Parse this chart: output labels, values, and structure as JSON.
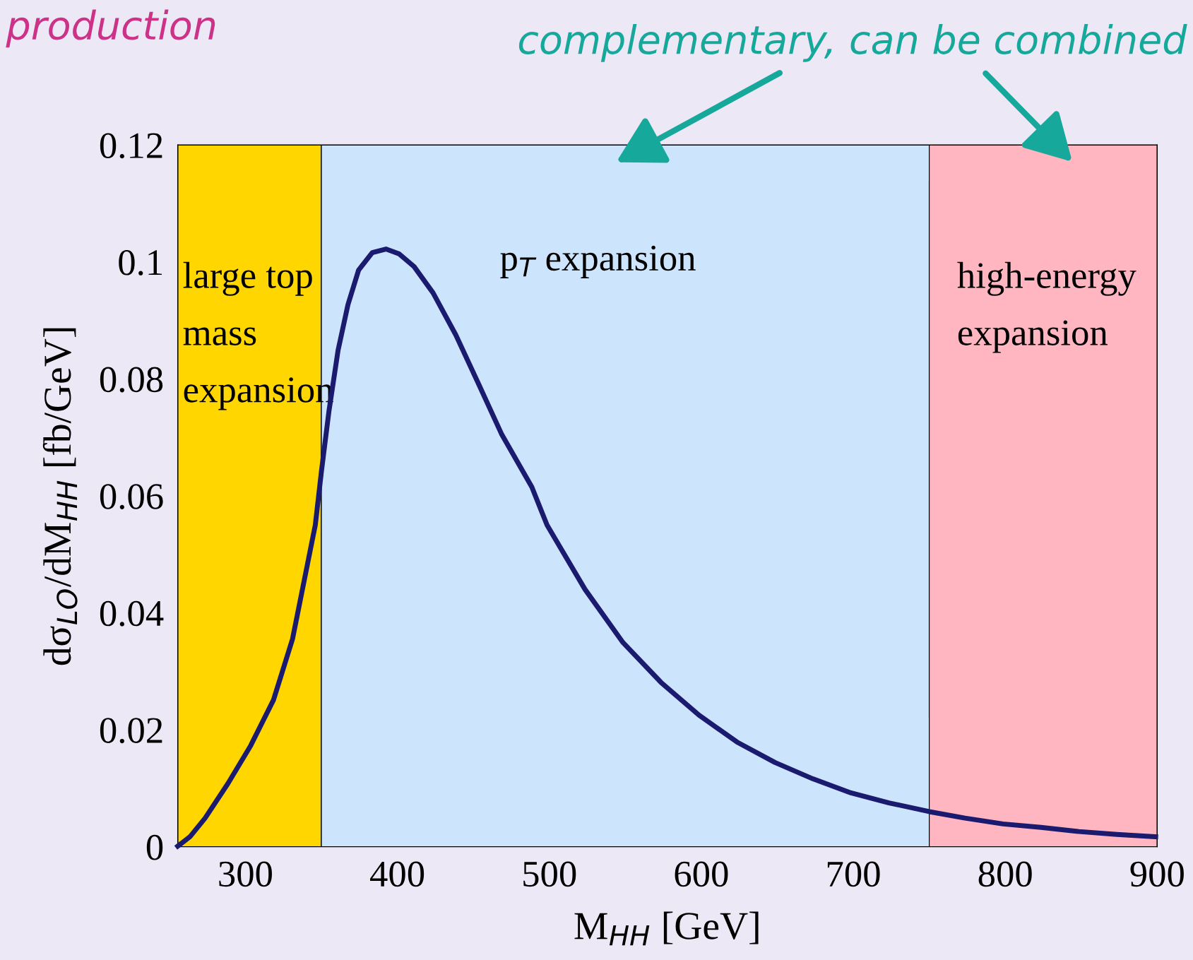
{
  "chart_data": {
    "type": "line",
    "xlabel": "M$_{HH}$ [GeV]",
    "ylabel": "dσ$_{LO}$/dM$_{HH}$ [fb/GeV]",
    "annotations": [
      "production",
      "complementary, can be combined"
    ],
    "x": [
      255.5,
      263.5,
      273.5,
      288.5,
      303.5,
      318.5,
      331,
      341,
      346,
      350,
      355,
      361,
      367.5,
      374.5,
      383.5,
      392.5,
      401,
      411,
      423.5,
      438.5,
      453.5,
      468.5,
      488.5,
      498.5,
      523.5,
      548.5,
      573.5,
      598.5,
      623.5,
      648.5,
      673.5,
      698.5,
      723.5,
      750,
      773.5,
      798.5,
      823.5,
      848.5,
      873.5,
      899
    ],
    "series": [
      {
        "color": "#1a1a6e",
        "values": [
          0.0001,
          0.0017,
          0.0049,
          0.0108,
          0.0173,
          0.0251,
          0.0355,
          0.0485,
          0.055,
          0.0641,
          0.0745,
          0.0849,
          0.0927,
          0.0986,
          0.1016,
          0.1022,
          0.1014,
          0.0992,
          0.0947,
          0.0875,
          0.0791,
          0.0706,
          0.0615,
          0.055,
          0.044,
          0.0349,
          0.0281,
          0.0225,
          0.0179,
          0.0144,
          0.0116,
          0.0092,
          0.0075,
          0.006,
          0.0049,
          0.0039,
          0.0033,
          0.0026,
          0.0021,
          0.0017
        ]
      }
    ],
    "bands": [
      {
        "axis": "x",
        "from": 255.5,
        "to": 350,
        "label": "large top\nmass\nexpansion",
        "color": "#ffd600"
      },
      {
        "axis": "x",
        "from": 350,
        "to": 750,
        "label": "p$_{T}$ expansion",
        "color": "#cce5fc"
      },
      {
        "axis": "x",
        "from": 750,
        "to": 900,
        "label": "high-energy\nexpansion",
        "color": "#ffb6c1"
      }
    ],
    "xlim": [
      255.5,
      900
    ],
    "ylim": [
      0,
      0.12
    ],
    "xticks": [
      300,
      400,
      500,
      600,
      700,
      800,
      900
    ],
    "yticks": [
      0,
      0.02,
      0.04,
      0.06,
      0.08,
      0.1,
      0.12
    ],
    "grid": false,
    "legend": false,
    "marker": "none",
    "line_style": "solid"
  }
}
